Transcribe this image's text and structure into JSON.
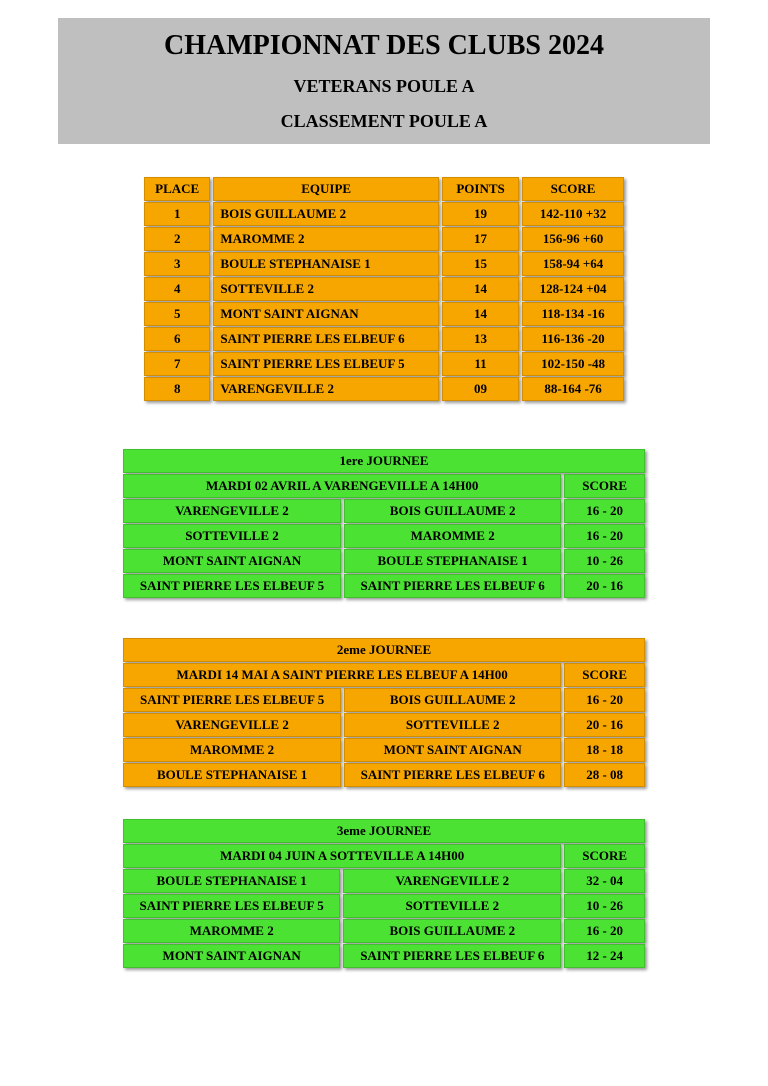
{
  "header": {
    "title": "CHAMPIONNAT DES CLUBS 2024",
    "subtitle1": "VETERANS POULE A",
    "subtitle2": "CLASSEMENT POULE A"
  },
  "standings": {
    "columns": {
      "place": "PLACE",
      "team": "EQUIPE",
      "points": "POINTS",
      "score": "SCORE"
    },
    "rows": [
      {
        "place": "1",
        "team": "BOIS GUILLAUME 2",
        "points": "19",
        "score": "142-110 +32"
      },
      {
        "place": "2",
        "team": "MAROMME 2",
        "points": "17",
        "score": "156-96 +60"
      },
      {
        "place": "3",
        "team": "BOULE STEPHANAISE 1",
        "points": "15",
        "score": "158-94 +64"
      },
      {
        "place": "4",
        "team": "SOTTEVILLE 2",
        "points": "14",
        "score": "128-124 +04"
      },
      {
        "place": "5",
        "team": "MONT SAINT AIGNAN",
        "points": "14",
        "score": "118-134 -16"
      },
      {
        "place": "6",
        "team": "SAINT PIERRE LES ELBEUF 6",
        "points": "13",
        "score": "116-136 -20"
      },
      {
        "place": "7",
        "team": "SAINT PIERRE LES ELBEUF 5",
        "points": "11",
        "score": "102-150 -48"
      },
      {
        "place": "8",
        "team": "VARENGEVILLE 2",
        "points": "09",
        "score": "88-164 -76"
      }
    ]
  },
  "journees": [
    {
      "title": "1ere JOURNEE",
      "info": "MARDI 02 AVRIL A VARENGEVILLE A 14H00",
      "score_label": "SCORE",
      "header_color": "green",
      "matches": [
        {
          "a": "VARENGEVILLE 2",
          "b": "BOIS GUILLAUME 2",
          "s": "16 - 20"
        },
        {
          "a": "SOTTEVILLE 2",
          "b": "MAROMME 2",
          "s": "16 - 20"
        },
        {
          "a": "MONT SAINT AIGNAN",
          "b": "BOULE STEPHANAISE 1",
          "s": "10 - 26"
        },
        {
          "a": "SAINT PIERRE LES ELBEUF 5",
          "b": "SAINT PIERRE LES ELBEUF 6",
          "s": "20 - 16"
        }
      ]
    },
    {
      "title": "2eme JOURNEE",
      "info": "MARDI 14 MAI A SAINT PIERRE LES ELBEUF A 14H00",
      "score_label": "SCORE",
      "header_color": "orange",
      "matches": [
        {
          "a": "SAINT PIERRE LES ELBEUF 5",
          "b": "BOIS GUILLAUME 2",
          "s": "16 - 20"
        },
        {
          "a": "VARENGEVILLE 2",
          "b": "SOTTEVILLE 2",
          "s": "20 - 16"
        },
        {
          "a": "MAROMME 2",
          "b": "MONT SAINT AIGNAN",
          "s": "18 - 18"
        },
        {
          "a": "BOULE STEPHANAISE 1",
          "b": "SAINT PIERRE LES ELBEUF 6",
          "s": "28 - 08"
        }
      ]
    },
    {
      "title": "3eme JOURNEE",
      "info": "MARDI 04 JUIN A SOTTEVILLE A 14H00",
      "score_label": "SCORE",
      "header_color": "green",
      "matches": [
        {
          "a": "BOULE STEPHANAISE 1",
          "b": "VARENGEVILLE 2",
          "s": "32 - 04"
        },
        {
          "a": "SAINT PIERRE LES ELBEUF 5",
          "b": "SOTTEVILLE 2",
          "s": "10 - 26"
        },
        {
          "a": "MAROMME 2",
          "b": "BOIS GUILLAUME 2",
          "s": "16 - 20"
        },
        {
          "a": "MONT SAINT AIGNAN",
          "b": "SAINT PIERRE LES ELBEUF 6",
          "s": "12 - 24"
        }
      ]
    }
  ],
  "colors": {
    "orange": "#f7a600",
    "green": "#4be234",
    "header_bg": "#bfbfbf",
    "page_bg": "#ffffff",
    "text": "#000000"
  }
}
